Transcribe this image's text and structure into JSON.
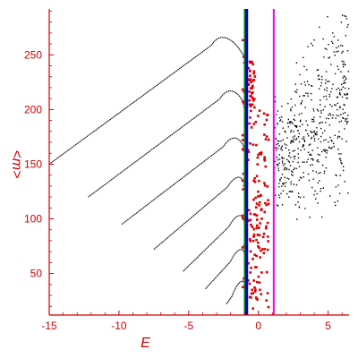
{
  "chart_data": {
    "type": "scatter",
    "title": "",
    "xlabel": "E",
    "ylabel": "<m>",
    "xlim": [
      -15,
      6.5
    ],
    "ylim": [
      12,
      292
    ],
    "xticks": [
      -15,
      -10,
      -5,
      0,
      5
    ],
    "yticks": [
      50,
      100,
      150,
      200,
      250
    ],
    "grid": false,
    "colors": {
      "axis": "#d20000",
      "curves": "#000000",
      "red_points": "#dd0000",
      "scatter": "#000000",
      "blue_line": "#0000cc",
      "green_line": "#00aa00",
      "magenta_line": "#ee00ee"
    },
    "vertical_lines": [
      {
        "color": "blue",
        "x": -0.85
      },
      {
        "color": "green",
        "x": -0.95
      },
      {
        "color": "magenta",
        "x": 1.1
      }
    ],
    "curves": [
      {
        "start": [
          -15.0,
          150
        ],
        "peak": [
          -2.6,
          266
        ],
        "end": [
          -1.0,
          248
        ]
      },
      {
        "start": [
          -12.2,
          120
        ],
        "peak": [
          -2.0,
          217
        ],
        "end": [
          -1.0,
          205
        ]
      },
      {
        "start": [
          -9.8,
          95
        ],
        "peak": [
          -1.7,
          174
        ],
        "end": [
          -1.0,
          165
        ]
      },
      {
        "start": [
          -7.5,
          72
        ],
        "peak": [
          -1.4,
          138
        ],
        "end": [
          -1.0,
          132
        ]
      },
      {
        "start": [
          -5.4,
          52
        ],
        "peak": [
          -1.3,
          103
        ],
        "end": [
          -1.0,
          97
        ]
      },
      {
        "start": [
          -3.8,
          36
        ],
        "peak": [
          -1.2,
          72
        ],
        "end": [
          -1.0,
          68
        ]
      },
      {
        "start": [
          -2.3,
          22
        ],
        "peak": [
          -1.1,
          43
        ],
        "end": [
          -1.0,
          40
        ]
      }
    ],
    "red_cluster": {
      "x_range": [
        -1.2,
        0.4
      ],
      "y_range": [
        18,
        245
      ]
    },
    "scatter_cloud": {
      "x_range": [
        1.1,
        6.5
      ],
      "y_range": [
        60,
        290
      ]
    }
  }
}
